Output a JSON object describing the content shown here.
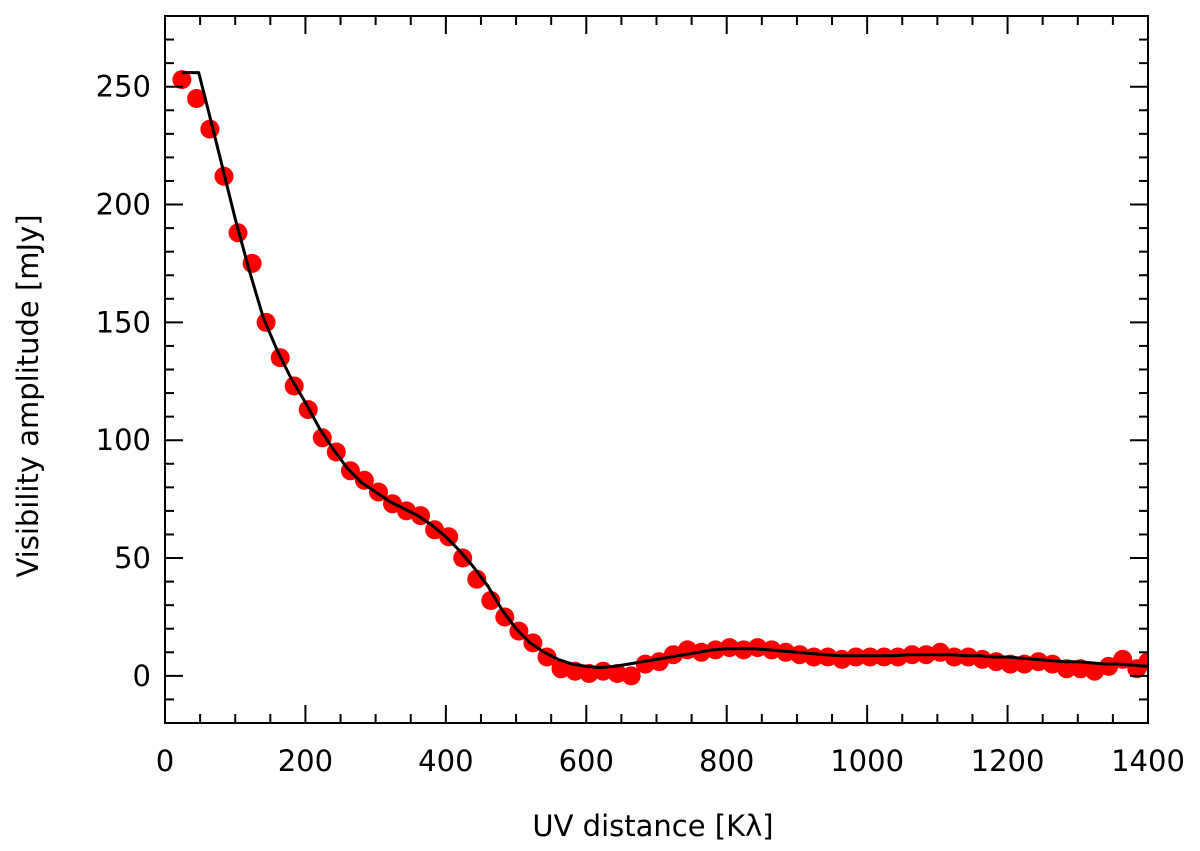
{
  "chart_data": {
    "type": "scatter",
    "xlabel": "UV distance [Kλ]",
    "ylabel": "Visibility amplitude [mJy]",
    "xlim": [
      0,
      1400
    ],
    "ylim": [
      -20,
      280
    ],
    "x_ticks": [
      "0",
      "200",
      "400",
      "600",
      "800",
      "1000",
      "1200",
      "1400"
    ],
    "y_ticks": [
      "0",
      "50",
      "100",
      "150",
      "200",
      "250"
    ],
    "grid": false,
    "colors": {
      "points": "#ff0000",
      "model_line": "#000000",
      "axes": "#000000"
    },
    "series": [
      {
        "type": "scatter",
        "points": [
          [
            24,
            253
          ],
          [
            45,
            245
          ],
          [
            64,
            232
          ],
          [
            84,
            212
          ],
          [
            104,
            188
          ],
          [
            124,
            175
          ],
          [
            144,
            150
          ],
          [
            164,
            135
          ],
          [
            184,
            123
          ],
          [
            204,
            113
          ],
          [
            224,
            101
          ],
          [
            244,
            95
          ],
          [
            264,
            87
          ],
          [
            284,
            83
          ],
          [
            304,
            78
          ],
          [
            324,
            73
          ],
          [
            344,
            70
          ],
          [
            364,
            68
          ],
          [
            384,
            62
          ],
          [
            404,
            59
          ],
          [
            424,
            50
          ],
          [
            444,
            41
          ],
          [
            464,
            32
          ],
          [
            484,
            25
          ],
          [
            504,
            19
          ],
          [
            524,
            14
          ],
          [
            544,
            8
          ],
          [
            564,
            3
          ],
          [
            584,
            2
          ],
          [
            604,
            1
          ],
          [
            624,
            2
          ],
          [
            644,
            1
          ],
          [
            664,
            0
          ],
          [
            684,
            5
          ],
          [
            704,
            6
          ],
          [
            724,
            9
          ],
          [
            744,
            11
          ],
          [
            764,
            10
          ],
          [
            784,
            11
          ],
          [
            804,
            12
          ],
          [
            824,
            11
          ],
          [
            844,
            12
          ],
          [
            864,
            11
          ],
          [
            884,
            10
          ],
          [
            904,
            9
          ],
          [
            924,
            8
          ],
          [
            944,
            8
          ],
          [
            964,
            7
          ],
          [
            984,
            8
          ],
          [
            1004,
            8
          ],
          [
            1024,
            8
          ],
          [
            1044,
            8
          ],
          [
            1064,
            9
          ],
          [
            1084,
            9
          ],
          [
            1104,
            10
          ],
          [
            1124,
            8
          ],
          [
            1144,
            8
          ],
          [
            1164,
            7
          ],
          [
            1184,
            6
          ],
          [
            1204,
            5
          ],
          [
            1224,
            5
          ],
          [
            1244,
            6
          ],
          [
            1264,
            5
          ],
          [
            1284,
            3
          ],
          [
            1304,
            3
          ],
          [
            1324,
            2
          ],
          [
            1344,
            4
          ],
          [
            1364,
            7
          ],
          [
            1384,
            3
          ],
          [
            1400,
            6
          ]
        ]
      },
      {
        "type": "line",
        "points": [
          [
            24,
            256
          ],
          [
            48,
            256
          ],
          [
            60,
            242
          ],
          [
            80,
            218
          ],
          [
            100,
            194
          ],
          [
            120,
            172
          ],
          [
            140,
            152
          ],
          [
            160,
            138
          ],
          [
            180,
            126
          ],
          [
            200,
            116
          ],
          [
            220,
            105
          ],
          [
            240,
            96
          ],
          [
            260,
            88
          ],
          [
            280,
            82
          ],
          [
            300,
            78
          ],
          [
            320,
            74
          ],
          [
            340,
            71
          ],
          [
            360,
            68
          ],
          [
            380,
            64
          ],
          [
            400,
            59
          ],
          [
            420,
            53
          ],
          [
            440,
            46
          ],
          [
            460,
            38
          ],
          [
            480,
            28
          ],
          [
            500,
            20
          ],
          [
            520,
            14
          ],
          [
            540,
            10
          ],
          [
            560,
            7
          ],
          [
            580,
            5
          ],
          [
            600,
            4
          ],
          [
            620,
            3.5
          ],
          [
            640,
            4
          ],
          [
            660,
            5
          ],
          [
            680,
            6
          ],
          [
            700,
            7
          ],
          [
            720,
            8
          ],
          [
            740,
            9
          ],
          [
            760,
            10
          ],
          [
            780,
            11
          ],
          [
            800,
            11.5
          ],
          [
            820,
            11.5
          ],
          [
            840,
            11.5
          ],
          [
            860,
            11
          ],
          [
            880,
            10.5
          ],
          [
            900,
            10
          ],
          [
            920,
            9.5
          ],
          [
            940,
            9
          ],
          [
            960,
            8.5
          ],
          [
            980,
            8.5
          ],
          [
            1000,
            8.5
          ],
          [
            1020,
            8.5
          ],
          [
            1040,
            8.5
          ],
          [
            1060,
            9
          ],
          [
            1080,
            9
          ],
          [
            1100,
            9
          ],
          [
            1120,
            9
          ],
          [
            1140,
            8.5
          ],
          [
            1160,
            8.5
          ],
          [
            1180,
            8
          ],
          [
            1200,
            8
          ],
          [
            1220,
            7.5
          ],
          [
            1240,
            7
          ],
          [
            1260,
            6.5
          ],
          [
            1280,
            6
          ],
          [
            1300,
            6
          ],
          [
            1320,
            5.5
          ],
          [
            1340,
            5
          ],
          [
            1360,
            5
          ],
          [
            1380,
            4.5
          ],
          [
            1400,
            4
          ]
        ]
      }
    ]
  }
}
